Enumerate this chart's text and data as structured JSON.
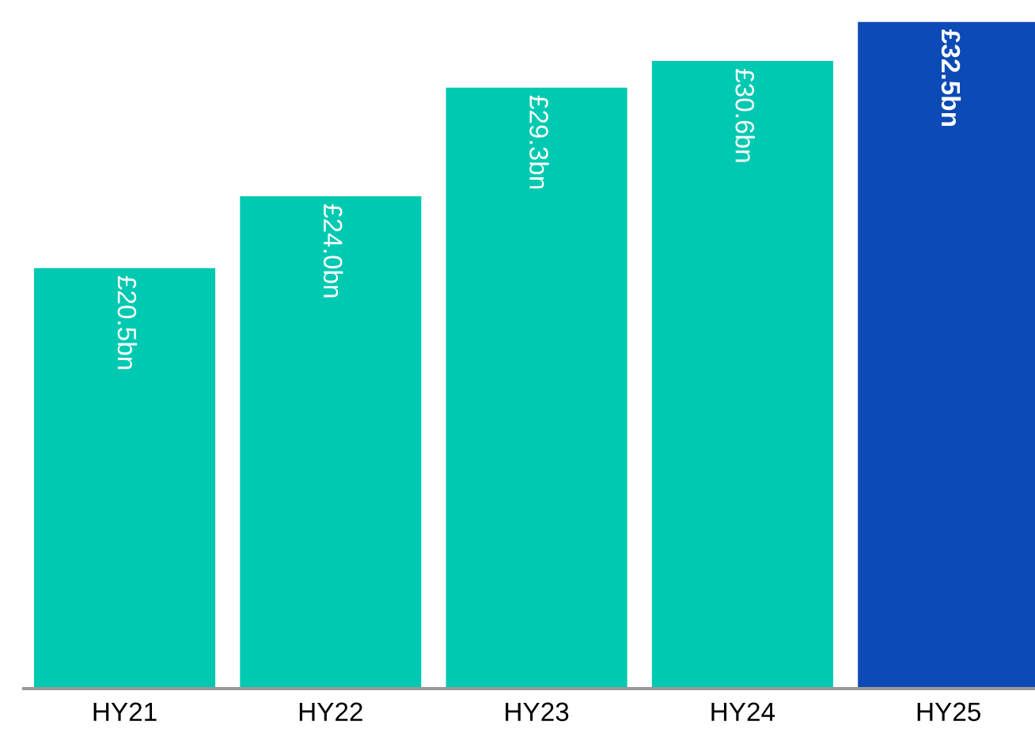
{
  "chart_data": {
    "type": "bar",
    "categories": [
      "HY21",
      "HY22",
      "HY23",
      "HY24",
      "HY25"
    ],
    "values": [
      20.5,
      24.0,
      29.3,
      30.6,
      32.5
    ],
    "colors": [
      "#00c9b1",
      "#00c9b1",
      "#00c9b1",
      "#00c9b1",
      "#0c4ab5"
    ],
    "value_labels": [
      "£20.5bn",
      "£24.0bn",
      "£29.3bn",
      "£30.6bn",
      "£32.5bn"
    ],
    "grid": false,
    "legend": false
  }
}
